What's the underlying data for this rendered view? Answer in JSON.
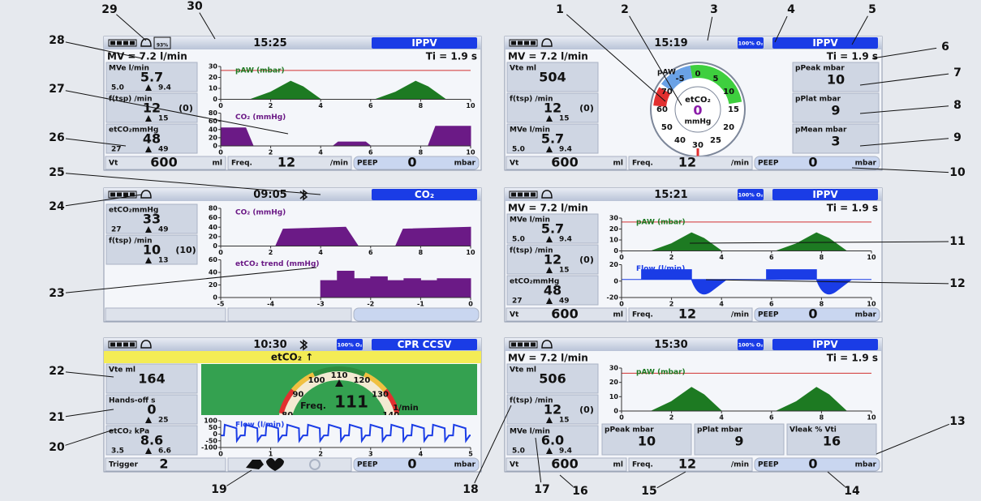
{
  "callouts": [
    1,
    2,
    3,
    4,
    5,
    6,
    7,
    8,
    9,
    10,
    11,
    12,
    13,
    14,
    15,
    16,
    17,
    18,
    19,
    20,
    21,
    22,
    23,
    24,
    25,
    26,
    27,
    28,
    29,
    30
  ],
  "panels": [
    {
      "time": "15:25",
      "battery_pct": "93%",
      "mode": "IPPV",
      "mv": "MV = 7.2 l/min",
      "ti": "Ti = 1.9 s",
      "params": [
        {
          "label": "MVe l/min",
          "value": "5.7",
          "low": "5.0",
          "high": "9.4"
        },
        {
          "label": "f(tsp) /min",
          "value": "12",
          "extra": "(0)",
          "high": "15"
        },
        {
          "label": "etCO₂mmHg",
          "value": "48",
          "low": "27",
          "high": "49"
        }
      ],
      "charts": [
        {
          "title": "pAW (mbar)",
          "color": "#1d7a22",
          "yticks": [
            30,
            20,
            10,
            0
          ],
          "xticks": [
            0,
            2,
            4,
            6,
            8,
            10
          ]
        },
        {
          "title": "CO₂ (mmHg)",
          "color": "#6b1a86",
          "yticks": [
            80,
            60,
            40,
            20,
            0
          ],
          "xticks": [
            0,
            2,
            4,
            6,
            8,
            10
          ]
        }
      ],
      "bottom": [
        {
          "label": "Vt",
          "value": "600",
          "unit": "ml"
        },
        {
          "label": "Freq.",
          "value": "12",
          "unit": "/min"
        },
        {
          "label": "PEEP",
          "value": "0",
          "unit": "mbar"
        }
      ]
    },
    {
      "time": "15:19",
      "o2": "100% O₂",
      "mode": "IPPV",
      "mv": "MV = 7.2 l/min",
      "ti": "Ti = 1.9 s",
      "params": [
        {
          "label": "Vte ml",
          "value": "504"
        },
        {
          "label": "f(tsp) /min",
          "value": "12",
          "extra": "(0)",
          "high": "15"
        },
        {
          "label": "MVe l/min",
          "value": "5.7",
          "low": "5.0",
          "high": "9.4"
        }
      ],
      "dial": {
        "label": "pAW",
        "param": "etCO₂",
        "value": "0",
        "unit": "mmHg",
        "scale": [
          "-5",
          "0",
          "5",
          "10",
          "15",
          "20",
          "25",
          "30",
          "40",
          "50",
          "60",
          "70"
        ]
      },
      "right_params": [
        {
          "label": "pPeak mbar",
          "value": "10"
        },
        {
          "label": "pPlat mbar",
          "value": "9"
        },
        {
          "label": "pMean mbar",
          "value": "3"
        }
      ],
      "bottom": [
        {
          "label": "Vt",
          "value": "600",
          "unit": "ml"
        },
        {
          "label": "Freq.",
          "value": "12",
          "unit": "/min"
        },
        {
          "label": "PEEP",
          "value": "0",
          "unit": "mbar"
        }
      ]
    },
    {
      "time": "09:05",
      "mode": "CO₂",
      "params": [
        {
          "label": "etCO₂mmHg",
          "value": "33",
          "low": "27",
          "high": "49"
        },
        {
          "label": "f(tsp) /min",
          "value": "10",
          "extra": "(10)",
          "high": "13"
        }
      ],
      "charts": [
        {
          "title": "CO₂ (mmHg)",
          "color": "#6b1a86",
          "yticks": [
            80,
            60,
            40,
            20,
            0
          ],
          "xticks": [
            0,
            2,
            4,
            6,
            8,
            10
          ]
        },
        {
          "title": "etCO₂ trend (mmHg)",
          "color": "#6b1a86",
          "yticks": [
            60,
            40,
            20,
            0
          ],
          "xticks": [
            -5,
            -4,
            -3,
            -2,
            -1,
            0
          ]
        }
      ],
      "bottom": []
    },
    {
      "time": "15:21",
      "o2": "100% O₂",
      "mode": "IPPV",
      "mv": "MV = 7.2 l/min",
      "ti": "Ti = 1.9 s",
      "params": [
        {
          "label": "MVe l/min",
          "value": "5.7",
          "low": "5.0",
          "high": "9.4"
        },
        {
          "label": "f(tsp) /min",
          "value": "12",
          "extra": "(0)",
          "high": "15"
        },
        {
          "label": "etCO₂mmHg",
          "value": "48",
          "low": "27",
          "high": "49"
        }
      ],
      "charts": [
        {
          "title": "pAW (mbar)",
          "color": "#1d7a22",
          "yticks": [
            30,
            20,
            10,
            0
          ],
          "xticks": [
            0,
            2,
            4,
            6,
            8,
            10
          ]
        },
        {
          "title": "Flow (l/min)",
          "color": "#1a3ce6",
          "yticks": [
            20,
            0,
            -20
          ],
          "xticks": [
            0,
            2,
            4,
            6,
            8,
            10
          ]
        }
      ],
      "bottom": [
        {
          "label": "Vt",
          "value": "600",
          "unit": "ml"
        },
        {
          "label": "Freq.",
          "value": "12",
          "unit": "/min"
        },
        {
          "label": "PEEP",
          "value": "0",
          "unit": "mbar"
        }
      ]
    },
    {
      "time": "10:30",
      "o2": "100% O₂",
      "mode": "CPR CCSV",
      "alert": "etCO₂ ↑",
      "params": [
        {
          "label": "Vte ml",
          "value": "164"
        },
        {
          "label": "Hands-off s",
          "value": "0",
          "high": "25"
        },
        {
          "label": "etCO₂ kPa",
          "value": "8.6",
          "low": "3.5",
          "high": "6.6"
        }
      ],
      "arc": {
        "scale": [
          "80",
          "90",
          "100",
          "110",
          "120",
          "130",
          "140"
        ],
        "label": "Freq.",
        "value": "111",
        "unit": "1/min"
      },
      "charts": [
        {
          "title": "Flow (l/min)",
          "color": "#1a3ce6",
          "yticks": [
            100,
            50,
            0,
            -50,
            -100
          ],
          "xticks": [
            0,
            1,
            2,
            3,
            4,
            5
          ]
        }
      ],
      "bottom": [
        {
          "label": "Trigger",
          "value": "2"
        },
        {
          "label": "PEEP",
          "value": "0",
          "unit": "mbar"
        }
      ]
    },
    {
      "time": "15:30",
      "o2": "100% O₂",
      "mode": "IPPV",
      "mv": "MV = 7.2 l/min",
      "ti": "Ti = 1.9 s",
      "params": [
        {
          "label": "Vte ml",
          "value": "506"
        },
        {
          "label": "f(tsp) /min",
          "value": "12",
          "extra": "(0)",
          "high": "15"
        },
        {
          "label": "MVe l/min",
          "value": "6.0",
          "low": "5.0",
          "high": "9.4"
        }
      ],
      "charts": [
        {
          "title": "pAW (mbar)",
          "color": "#1d7a22",
          "yticks": [
            30,
            20,
            10,
            0
          ],
          "xticks": [
            0,
            2,
            4,
            6,
            8,
            10
          ]
        }
      ],
      "mid_params": [
        {
          "label": "pPeak mbar",
          "value": "10"
        },
        {
          "label": "pPlat mbar",
          "value": "9"
        },
        {
          "label": "Vleak % Vti",
          "value": "16"
        }
      ],
      "bottom": [
        {
          "label": "Vt",
          "value": "600",
          "unit": "ml"
        },
        {
          "label": "Freq.",
          "value": "12",
          "unit": "/min"
        },
        {
          "label": "PEEP",
          "value": "0",
          "unit": "mbar"
        }
      ]
    }
  ]
}
